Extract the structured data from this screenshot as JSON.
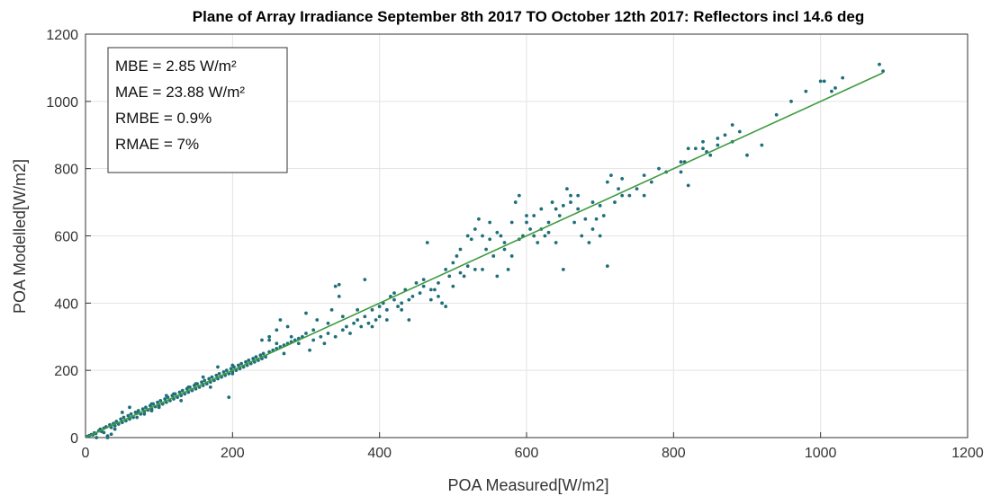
{
  "chart_data": {
    "type": "scatter",
    "title": "Plane of Array Irradiance September 8th 2017 TO October 12th 2017: Reflectors incl 14.6 deg",
    "xlabel": "POA Measured[W/m2]",
    "ylabel": "POA Modelled[W/m2]",
    "xlim": [
      0,
      1200
    ],
    "ylim": [
      0,
      1200
    ],
    "xticks": [
      "0",
      "200",
      "400",
      "600",
      "800",
      "1000",
      "1200"
    ],
    "yticks": [
      "0",
      "200",
      "400",
      "600",
      "800",
      "1000",
      "1200"
    ],
    "grid": true,
    "colors": {
      "points": "#1f6f7a",
      "fit_line": "#3f9a3f",
      "grid": "#e3e3e3",
      "axis": "#333333"
    },
    "stats": [
      "MBE = 2.85 W/m²",
      "MAE = 23.88 W/m²",
      "RMBE = 0.9%",
      "RMAE = 7%"
    ],
    "fit_line": {
      "x": [
        0,
        1085
      ],
      "y": [
        0,
        1085
      ]
    },
    "series": [
      {
        "points": [
          [
            2,
            3
          ],
          [
            5,
            6
          ],
          [
            8,
            9
          ],
          [
            10,
            8
          ],
          [
            12,
            14
          ],
          [
            14,
            12
          ],
          [
            18,
            20
          ],
          [
            20,
            25
          ],
          [
            22,
            18
          ],
          [
            25,
            28
          ],
          [
            28,
            32
          ],
          [
            30,
            5
          ],
          [
            33,
            38
          ],
          [
            35,
            30
          ],
          [
            38,
            42
          ],
          [
            40,
            35
          ],
          [
            42,
            48
          ],
          [
            45,
            40
          ],
          [
            48,
            55
          ],
          [
            50,
            45
          ],
          [
            52,
            60
          ],
          [
            55,
            50
          ],
          [
            58,
            65
          ],
          [
            60,
            58
          ],
          [
            62,
            70
          ],
          [
            65,
            60
          ],
          [
            68,
            75
          ],
          [
            70,
            72
          ],
          [
            72,
            80
          ],
          [
            75,
            70
          ],
          [
            78,
            85
          ],
          [
            80,
            78
          ],
          [
            82,
            90
          ],
          [
            85,
            82
          ],
          [
            88,
            95
          ],
          [
            90,
            85
          ],
          [
            92,
            100
          ],
          [
            95,
            92
          ],
          [
            98,
            105
          ],
          [
            100,
            95
          ],
          [
            102,
            110
          ],
          [
            105,
            100
          ],
          [
            108,
            115
          ],
          [
            110,
            105
          ],
          [
            112,
            120
          ],
          [
            115,
            110
          ],
          [
            118,
            125
          ],
          [
            120,
            115
          ],
          [
            122,
            130
          ],
          [
            125,
            120
          ],
          [
            128,
            135
          ],
          [
            130,
            125
          ],
          [
            132,
            140
          ],
          [
            135,
            130
          ],
          [
            138,
            145
          ],
          [
            140,
            135
          ],
          [
            142,
            150
          ],
          [
            145,
            140
          ],
          [
            148,
            155
          ],
          [
            150,
            145
          ],
          [
            152,
            160
          ],
          [
            155,
            150
          ],
          [
            158,
            165
          ],
          [
            160,
            155
          ],
          [
            162,
            170
          ],
          [
            165,
            160
          ],
          [
            168,
            175
          ],
          [
            170,
            165
          ],
          [
            172,
            180
          ],
          [
            175,
            170
          ],
          [
            178,
            185
          ],
          [
            180,
            175
          ],
          [
            182,
            190
          ],
          [
            185,
            180
          ],
          [
            188,
            195
          ],
          [
            190,
            185
          ],
          [
            192,
            200
          ],
          [
            195,
            190
          ],
          [
            198,
            205
          ],
          [
            200,
            195
          ],
          [
            202,
            210
          ],
          [
            205,
            200
          ],
          [
            208,
            215
          ],
          [
            210,
            205
          ],
          [
            212,
            220
          ],
          [
            215,
            210
          ],
          [
            218,
            225
          ],
          [
            220,
            215
          ],
          [
            222,
            230
          ],
          [
            225,
            220
          ],
          [
            228,
            235
          ],
          [
            230,
            225
          ],
          [
            232,
            240
          ],
          [
            235,
            230
          ],
          [
            238,
            245
          ],
          [
            240,
            235
          ],
          [
            242,
            250
          ],
          [
            245,
            240
          ],
          [
            250,
            255
          ],
          [
            255,
            260
          ],
          [
            260,
            265
          ],
          [
            265,
            270
          ],
          [
            270,
            275
          ],
          [
            275,
            280
          ],
          [
            280,
            285
          ],
          [
            285,
            290
          ],
          [
            290,
            295
          ],
          [
            295,
            300
          ],
          [
            200,
            215
          ],
          [
            195,
            120
          ],
          [
            180,
            210
          ],
          [
            170,
            150
          ],
          [
            160,
            180
          ],
          [
            140,
            150
          ],
          [
            130,
            110
          ],
          [
            110,
            125
          ],
          [
            90,
            100
          ],
          [
            70,
            60
          ],
          [
            60,
            55
          ],
          [
            50,
            75
          ],
          [
            40,
            25
          ],
          [
            35,
            10
          ],
          [
            25,
            15
          ],
          [
            15,
            0
          ],
          [
            30,
            0
          ],
          [
            240,
            290
          ],
          [
            250,
            300
          ],
          [
            260,
            280
          ],
          [
            265,
            350
          ],
          [
            270,
            250
          ],
          [
            280,
            300
          ],
          [
            290,
            280
          ],
          [
            300,
            310
          ],
          [
            305,
            260
          ],
          [
            310,
            320
          ],
          [
            315,
            350
          ],
          [
            320,
            300
          ],
          [
            325,
            280
          ],
          [
            330,
            340
          ],
          [
            335,
            380
          ],
          [
            340,
            300
          ],
          [
            345,
            420
          ],
          [
            350,
            360
          ],
          [
            355,
            330
          ],
          [
            360,
            310
          ],
          [
            365,
            340
          ],
          [
            370,
            350
          ],
          [
            375,
            330
          ],
          [
            380,
            360
          ],
          [
            385,
            340
          ],
          [
            390,
            380
          ],
          [
            395,
            350
          ],
          [
            400,
            360
          ],
          [
            405,
            400
          ],
          [
            410,
            380
          ],
          [
            415,
            420
          ],
          [
            420,
            410
          ],
          [
            425,
            390
          ],
          [
            430,
            400
          ],
          [
            435,
            440
          ],
          [
            440,
            350
          ],
          [
            445,
            420
          ],
          [
            450,
            460
          ],
          [
            455,
            430
          ],
          [
            460,
            470
          ],
          [
            465,
            580
          ],
          [
            470,
            410
          ],
          [
            475,
            440
          ],
          [
            480,
            460
          ],
          [
            485,
            400
          ],
          [
            490,
            390
          ],
          [
            495,
            480
          ],
          [
            500,
            520
          ],
          [
            505,
            540
          ],
          [
            510,
            560
          ],
          [
            515,
            480
          ],
          [
            520,
            600
          ],
          [
            525,
            590
          ],
          [
            530,
            620
          ],
          [
            535,
            650
          ],
          [
            540,
            500
          ],
          [
            545,
            560
          ],
          [
            550,
            640
          ],
          [
            555,
            540
          ],
          [
            560,
            480
          ],
          [
            565,
            600
          ],
          [
            570,
            580
          ],
          [
            575,
            500
          ],
          [
            580,
            640
          ],
          [
            585,
            700
          ],
          [
            590,
            720
          ],
          [
            595,
            600
          ],
          [
            600,
            640
          ],
          [
            605,
            620
          ],
          [
            610,
            660
          ],
          [
            615,
            580
          ],
          [
            620,
            620
          ],
          [
            625,
            600
          ],
          [
            630,
            640
          ],
          [
            635,
            700
          ],
          [
            640,
            580
          ],
          [
            645,
            660
          ],
          [
            650,
            500
          ],
          [
            655,
            740
          ],
          [
            660,
            720
          ],
          [
            665,
            640
          ],
          [
            670,
            720
          ],
          [
            675,
            600
          ],
          [
            680,
            650
          ],
          [
            685,
            580
          ],
          [
            690,
            620
          ],
          [
            695,
            650
          ],
          [
            700,
            600
          ],
          [
            705,
            660
          ],
          [
            710,
            510
          ],
          [
            715,
            780
          ],
          [
            720,
            700
          ],
          [
            725,
            740
          ],
          [
            730,
            770
          ],
          [
            740,
            720
          ],
          [
            750,
            740
          ],
          [
            760,
            780
          ],
          [
            770,
            760
          ],
          [
            780,
            800
          ],
          [
            810,
            790
          ],
          [
            815,
            820
          ],
          [
            820,
            750
          ],
          [
            830,
            860
          ],
          [
            840,
            880
          ],
          [
            845,
            850
          ],
          [
            850,
            840
          ],
          [
            860,
            870
          ],
          [
            870,
            900
          ],
          [
            880,
            930
          ],
          [
            890,
            910
          ],
          [
            900,
            840
          ],
          [
            920,
            870
          ],
          [
            940,
            960
          ],
          [
            960,
            1000
          ],
          [
            980,
            1030
          ],
          [
            1000,
            1060
          ],
          [
            1020,
            1040
          ],
          [
            1030,
            1070
          ],
          [
            1080,
            1110
          ],
          [
            1085,
            1090
          ],
          [
            1005,
            1060
          ],
          [
            1015,
            1030
          ],
          [
            340,
            450
          ],
          [
            345,
            455
          ],
          [
            380,
            470
          ],
          [
            300,
            370
          ],
          [
            200,
            190
          ],
          [
            150,
            160
          ],
          [
            120,
            130
          ],
          [
            100,
            90
          ],
          [
            80,
            70
          ],
          [
            60,
            90
          ],
          [
            90,
            80
          ],
          [
            250,
            290
          ],
          [
            260,
            320
          ],
          [
            275,
            330
          ],
          [
            310,
            290
          ],
          [
            330,
            310
          ],
          [
            350,
            320
          ],
          [
            370,
            380
          ],
          [
            390,
            330
          ],
          [
            400,
            390
          ],
          [
            410,
            350
          ],
          [
            420,
            430
          ],
          [
            430,
            380
          ],
          [
            440,
            410
          ],
          [
            460,
            450
          ],
          [
            470,
            440
          ],
          [
            480,
            420
          ],
          [
            490,
            500
          ],
          [
            500,
            450
          ],
          [
            510,
            490
          ],
          [
            520,
            510
          ],
          [
            530,
            500
          ],
          [
            540,
            600
          ],
          [
            550,
            590
          ],
          [
            560,
            610
          ],
          [
            570,
            560
          ],
          [
            580,
            540
          ],
          [
            590,
            590
          ],
          [
            600,
            660
          ],
          [
            610,
            600
          ],
          [
            620,
            680
          ],
          [
            630,
            610
          ],
          [
            640,
            680
          ],
          [
            650,
            690
          ],
          [
            660,
            700
          ],
          [
            670,
            680
          ],
          [
            690,
            700
          ],
          [
            700,
            690
          ],
          [
            710,
            760
          ],
          [
            730,
            720
          ],
          [
            760,
            720
          ],
          [
            790,
            790
          ],
          [
            810,
            820
          ],
          [
            820,
            860
          ],
          [
            840,
            860
          ],
          [
            860,
            890
          ],
          [
            880,
            880
          ]
        ]
      }
    ]
  }
}
